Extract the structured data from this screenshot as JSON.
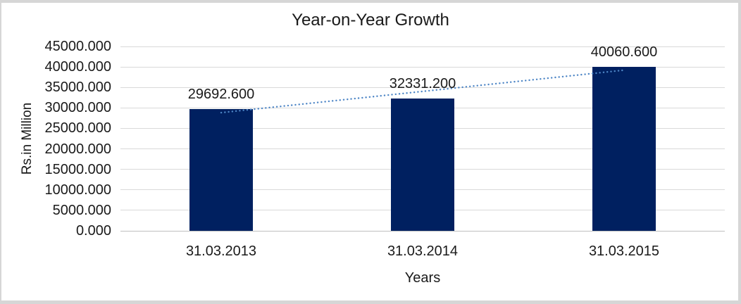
{
  "frame": {
    "border_color": "#d6d6d6",
    "background_color": "#ffffff"
  },
  "chart_data": {
    "type": "bar",
    "title": "Year-on-Year Growth",
    "xlabel": "Years",
    "ylabel": "Rs.in Million",
    "categories": [
      "31.03.2013",
      "31.03.2014",
      "31.03.2015"
    ],
    "values": [
      29692.6,
      32331.2,
      40060.6
    ],
    "data_labels": [
      "29692.600",
      "32331.200",
      "40060.600"
    ],
    "ylim": [
      0,
      45000
    ],
    "ytick_step": 5000,
    "yticks": [
      "45000.000",
      "40000.000",
      "35000.000",
      "30000.000",
      "25000.000",
      "20000.000",
      "15000.000",
      "10000.000",
      "5000.000",
      "0.000"
    ],
    "grid": true,
    "legend_position": "none",
    "bar_color": "#002060",
    "gridline_color": "#d9d9d9",
    "axis_line_color": "#bfbfbf",
    "text_color": "#1a1a1a",
    "trendline": {
      "type": "linear",
      "style": "dotted",
      "color": "#4e86c6"
    }
  }
}
